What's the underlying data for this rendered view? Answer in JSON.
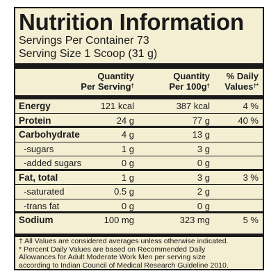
{
  "title": "Nutrition Information",
  "servings_per_container": "Servings Per Container 73",
  "serving_size": "Serving Size 1 Scoop (31 g)",
  "headers": {
    "col1_line1": "Quantity",
    "col1_line2": "Per Serving",
    "col1_mark": "†",
    "col2_line1": "Quantity",
    "col2_line2": "Per 100g",
    "col2_mark": "†",
    "col3_line1": "% Daily",
    "col3_line2": "Values",
    "col3_mark": "†*"
  },
  "rows": [
    {
      "name": "Energy",
      "per_serving": "121 kcal",
      "per_100g": "387 kcal",
      "daily": "4 %"
    },
    {
      "name": "Protein",
      "per_serving": "24 g",
      "per_100g": "77 g",
      "daily": "40 %"
    },
    {
      "name": "Carbohydrate",
      "per_serving": "4 g",
      "per_100g": "13 g",
      "daily": ""
    },
    {
      "name": "-sugars",
      "per_serving": "1 g",
      "per_100g": "3 g",
      "daily": ""
    },
    {
      "name": "-added sugars",
      "per_serving": "0 g",
      "per_100g": "0 g",
      "daily": ""
    },
    {
      "name": "Fat, total",
      "per_serving": "1 g",
      "per_100g": "3 g",
      "daily": "3 %"
    },
    {
      "name": "-saturated",
      "per_serving": "0.5 g",
      "per_100g": "2 g",
      "daily": ""
    },
    {
      "name": "-trans fat",
      "per_serving": "0 g",
      "per_100g": "0 g",
      "daily": ""
    },
    {
      "name": "Sodium",
      "per_serving": "100 mg",
      "per_100g": "323 mg",
      "daily": "5 %"
    }
  ],
  "footnotes": [
    "† All Values are considered averages unless otherwise indicated.",
    "* Percent Daily Values are based on Recommended Daily",
    "Allowances for Adult Moderate Work Men per serving size",
    "according to Indian Council of Medical Research Guideline 2010."
  ],
  "colors": {
    "panel_background": "#f4eed3",
    "ink": "#1a1a1a"
  }
}
